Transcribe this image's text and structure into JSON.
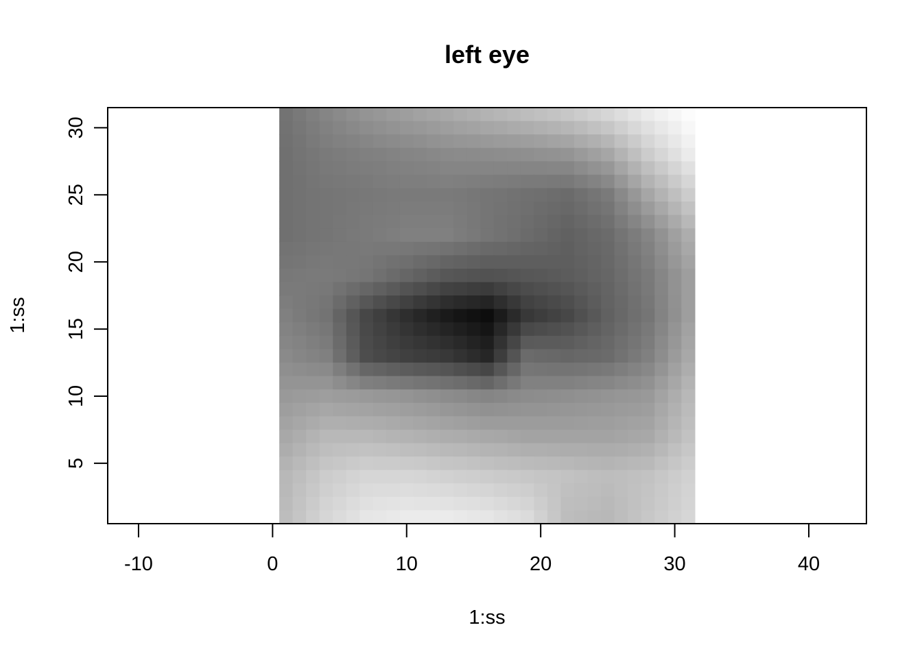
{
  "chart_data": {
    "type": "heatmap",
    "title": "left eye",
    "xlabel": "1:ss",
    "ylabel": "1:ss",
    "xlim": [
      -12.3,
      44.3
    ],
    "ylim": [
      0.5,
      31.5
    ],
    "x_ticks": [
      -10,
      0,
      10,
      20,
      30,
      40
    ],
    "y_ticks": [
      5,
      10,
      15,
      20,
      25,
      30
    ],
    "grid": false,
    "color_scale": "grayscale (dark = low, light = high)",
    "image_extent": {
      "x": [
        0.5,
        31.5
      ],
      "y": [
        0.5,
        31.5
      ]
    },
    "matrix_size": [
      31,
      31
    ],
    "matrix_note": "approximate pixel intensities (0=black, 1=white) sampled from the rendered image; rows listed from y=31 (top) down to y=1 (bottom)",
    "matrix_coarse_rows": [
      [
        0.45,
        0.52,
        0.58,
        0.62,
        0.66,
        0.7,
        0.74,
        0.78,
        0.84,
        0.92,
        0.99
      ],
      [
        0.44,
        0.48,
        0.5,
        0.52,
        0.54,
        0.55,
        0.56,
        0.58,
        0.65,
        0.8,
        0.92
      ],
      [
        0.44,
        0.46,
        0.47,
        0.48,
        0.48,
        0.46,
        0.44,
        0.42,
        0.48,
        0.65,
        0.8
      ],
      [
        0.44,
        0.46,
        0.48,
        0.5,
        0.5,
        0.46,
        0.42,
        0.38,
        0.42,
        0.52,
        0.68
      ],
      [
        0.47,
        0.48,
        0.46,
        0.4,
        0.34,
        0.32,
        0.34,
        0.36,
        0.4,
        0.48,
        0.62
      ],
      [
        0.5,
        0.45,
        0.28,
        0.18,
        0.1,
        0.05,
        0.22,
        0.28,
        0.38,
        0.46,
        0.62
      ],
      [
        0.54,
        0.5,
        0.3,
        0.25,
        0.22,
        0.15,
        0.42,
        0.4,
        0.42,
        0.5,
        0.66
      ],
      [
        0.6,
        0.62,
        0.6,
        0.58,
        0.55,
        0.52,
        0.55,
        0.56,
        0.58,
        0.6,
        0.72
      ],
      [
        0.66,
        0.72,
        0.72,
        0.7,
        0.68,
        0.66,
        0.64,
        0.64,
        0.64,
        0.66,
        0.76
      ],
      [
        0.72,
        0.8,
        0.84,
        0.84,
        0.82,
        0.8,
        0.78,
        0.76,
        0.74,
        0.76,
        0.82
      ],
      [
        0.74,
        0.84,
        0.9,
        0.92,
        0.92,
        0.9,
        0.86,
        0.74,
        0.72,
        0.78,
        0.84
      ]
    ],
    "matrix_coarse_note": "11x11 coarse grid of the 31x31 image, bilinearly interpolated to 31x31 for rendering"
  }
}
